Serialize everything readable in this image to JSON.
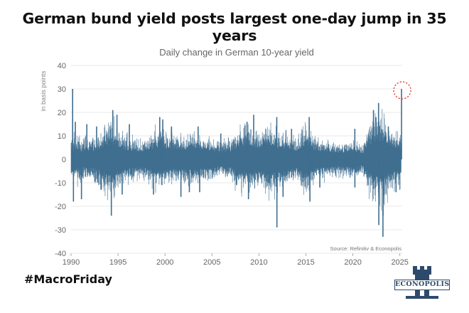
{
  "headline": "German bund yield posts largest one-day jump in 35 years",
  "hashtag": "#MacroFriday",
  "logo_text": "ECONOPOLIS",
  "colors": {
    "series": "#3f6e8f",
    "highlight": "#e03a2e",
    "grid": "#e3e3e3",
    "text": "#666666"
  },
  "chart_data": {
    "type": "bar",
    "title": "Daily change in German 10-year yield",
    "ylabel": "in basis points",
    "source": "Source: Refinitiv & Econopolis",
    "xlim": [
      1990,
      2025.25
    ],
    "ylim": [
      -40,
      40
    ],
    "x_ticks": [
      "1990",
      "1995",
      "2000",
      "2005",
      "2010",
      "2015",
      "2020",
      "2025"
    ],
    "y_ticks": [
      "40",
      "30",
      "20",
      "10",
      "0",
      "-10",
      "-20",
      "-30",
      "-40"
    ],
    "grid": true,
    "highlight": {
      "date": "2025-03-05",
      "value": 30,
      "marker": "dotted red circle"
    },
    "envelope": {
      "years": [
        1990,
        1991,
        1992,
        1993,
        1994,
        1995,
        1996,
        1997,
        1998,
        1999,
        2000,
        2001,
        2002,
        2003,
        2004,
        2005,
        2006,
        2007,
        2008,
        2009,
        2010,
        2011,
        2012,
        2013,
        2014,
        2015,
        2016,
        2017,
        2018,
        2019,
        2020,
        2021,
        2022,
        2023,
        2024,
        2025
      ],
      "typical_abs_change_bp": [
        7,
        6,
        6,
        7,
        12,
        9,
        7,
        6,
        6,
        9,
        8,
        7,
        7,
        8,
        7,
        6,
        5,
        6,
        10,
        10,
        8,
        11,
        9,
        8,
        6,
        11,
        6,
        6,
        5,
        5,
        6,
        4,
        12,
        14,
        9,
        8
      ]
    },
    "extremes": [
      {
        "date": "1990-03-01",
        "value": 30
      },
      {
        "date": "1990-04-02",
        "value": -18
      },
      {
        "date": "1990-06-15",
        "value": 16
      },
      {
        "date": "1991-02-10",
        "value": -17
      },
      {
        "date": "1991-09-05",
        "value": 15
      },
      {
        "date": "1992-09-20",
        "value": 14
      },
      {
        "date": "1993-03-15",
        "value": -13
      },
      {
        "date": "1994-04-15",
        "value": -24
      },
      {
        "date": "1994-06-10",
        "value": 21
      },
      {
        "date": "1994-11-20",
        "value": 19
      },
      {
        "date": "1995-06-10",
        "value": -15
      },
      {
        "date": "1996-03-15",
        "value": 15
      },
      {
        "date": "1998-10-10",
        "value": -15
      },
      {
        "date": "1999-06-10",
        "value": 18
      },
      {
        "date": "1999-10-05",
        "value": 17
      },
      {
        "date": "2000-09-10",
        "value": 14
      },
      {
        "date": "2001-09-12",
        "value": -16
      },
      {
        "date": "2002-08-05",
        "value": -14
      },
      {
        "date": "2003-07-10",
        "value": 14
      },
      {
        "date": "2003-09-10",
        "value": -14
      },
      {
        "date": "2005-12-10",
        "value": 11
      },
      {
        "date": "2007-08-10",
        "value": -11
      },
      {
        "date": "2008-09-25",
        "value": 16
      },
      {
        "date": "2008-11-20",
        "value": -17
      },
      {
        "date": "2009-06-10",
        "value": 19
      },
      {
        "date": "2011-11-25",
        "value": 18
      },
      {
        "date": "2011-11-30",
        "value": -29
      },
      {
        "date": "2012-07-25",
        "value": -16
      },
      {
        "date": "2013-06-20",
        "value": 13
      },
      {
        "date": "2015-05-07",
        "value": 18
      },
      {
        "date": "2015-06-05",
        "value": -18
      },
      {
        "date": "2016-06-24",
        "value": -12
      },
      {
        "date": "2020-03-16",
        "value": 13
      },
      {
        "date": "2020-03-18",
        "value": -12
      },
      {
        "date": "2022-03-10",
        "value": 21
      },
      {
        "date": "2022-06-15",
        "value": 18
      },
      {
        "date": "2022-09-25",
        "value": 24
      },
      {
        "date": "2022-10-05",
        "value": -28
      },
      {
        "date": "2023-03-13",
        "value": -33
      },
      {
        "date": "2023-03-15",
        "value": -24
      },
      {
        "date": "2023-10-10",
        "value": 14
      },
      {
        "date": "2024-08-05",
        "value": -14
      },
      {
        "date": "2025-03-05",
        "value": 30
      }
    ]
  }
}
